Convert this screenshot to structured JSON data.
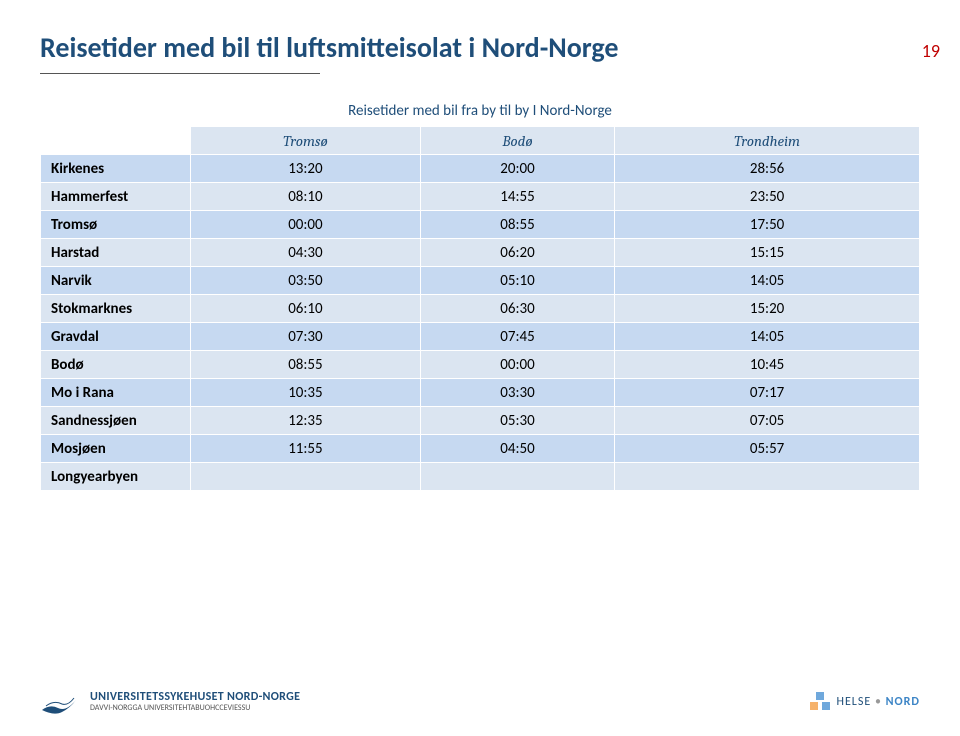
{
  "page_number": "19",
  "title": "Reisetider med bil til luftsmitteisolat i Nord-Norge",
  "table": {
    "caption": "Reisetider med bil fra by til by I Nord-Norge",
    "columns": [
      "Tromsø",
      "Bodø",
      "Trondheim"
    ],
    "rows": [
      {
        "label": "Kirkenes",
        "cells": [
          "13:20",
          "20:00",
          "28:56"
        ]
      },
      {
        "label": "Hammerfest",
        "cells": [
          "08:10",
          "14:55",
          "23:50"
        ]
      },
      {
        "label": "Tromsø",
        "cells": [
          "00:00",
          "08:55",
          "17:50"
        ]
      },
      {
        "label": "Harstad",
        "cells": [
          "04:30",
          "06:20",
          "15:15"
        ]
      },
      {
        "label": "Narvik",
        "cells": [
          "03:50",
          "05:10",
          "14:05"
        ]
      },
      {
        "label": "Stokmarknes",
        "cells": [
          "06:10",
          "06:30",
          "15:20"
        ]
      },
      {
        "label": "Gravdal",
        "cells": [
          "07:30",
          "07:45",
          "14:05"
        ]
      },
      {
        "label": "Bodø",
        "cells": [
          "08:55",
          "00:00",
          "10:45"
        ]
      },
      {
        "label": "Mo i Rana",
        "cells": [
          "10:35",
          "03:30",
          "07:17"
        ]
      },
      {
        "label": "Sandnessjøen",
        "cells": [
          "12:35",
          "05:30",
          "07:05"
        ]
      },
      {
        "label": "Mosjøen",
        "cells": [
          "11:55",
          "04:50",
          "05:57"
        ]
      },
      {
        "label": "Longyearbyen",
        "cells": [
          "",
          "",
          ""
        ]
      }
    ],
    "header_bg": "#dbe5f1",
    "band_colors": [
      "#c6d9f1",
      "#dbe5f1"
    ],
    "text_color": "#1f4e79"
  },
  "footer": {
    "left_org_name": "UNIVERSITETSSYKEHUSET NORD-NORGE",
    "left_org_sub": "DAVVI-NORGGA UNIVERSITEHTABUOHCCEVIESSU",
    "right_brand_a": "HELSE",
    "right_brand_b": "NORD"
  }
}
